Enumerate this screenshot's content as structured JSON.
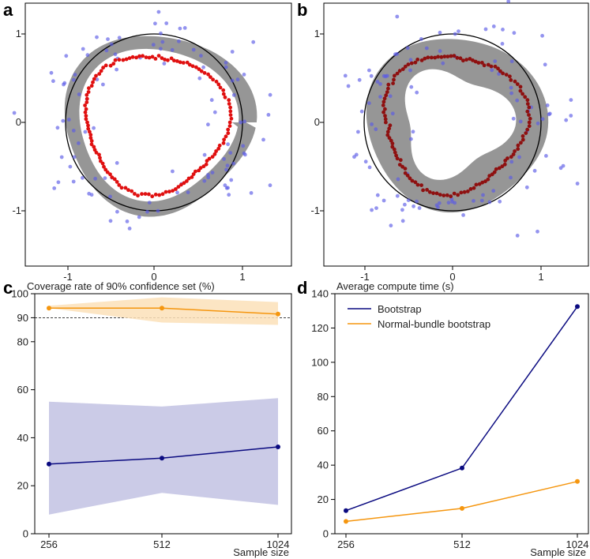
{
  "panels": {
    "a": "a",
    "b": "b",
    "c": "c",
    "d": "d"
  },
  "colors": {
    "bootstrap": "#0a0a80",
    "bootstrap_band": "#c8c8e6",
    "normal_bundle": "#f5960f",
    "normal_bundle_band": "#fbe0b8",
    "sample_points": "#5a5ae6",
    "red_points_a": "#e01010",
    "red_points_b": "#8e1010",
    "band_gray": "#909090"
  },
  "chart_data": [
    {
      "type": "scatter",
      "panel": "a",
      "title": "",
      "xticks": [
        "-1",
        "0",
        "1"
      ],
      "yticks": [
        "1",
        "0",
        "-1"
      ],
      "xlim": [
        -1.45,
        1.55
      ],
      "ylim": [
        -1.5,
        1.3
      ],
      "unit_circle_radius": 1.0,
      "sample_points_count": 110,
      "estimate_points_count": 130,
      "estimate_radius": 0.78,
      "band_description": "gray confidence band around unit circle"
    },
    {
      "type": "scatter",
      "panel": "b",
      "title": "",
      "xticks": [
        "-1",
        "0",
        "1"
      ],
      "yticks": [
        "1",
        "0",
        "-1"
      ],
      "xlim": [
        -1.45,
        1.55
      ],
      "ylim": [
        -1.5,
        1.3
      ],
      "unit_circle_radius": 1.0,
      "sample_points_count": 110,
      "estimate_points_count": 130,
      "estimate_radius": 0.78,
      "band_description": "wide gray confidence band"
    },
    {
      "type": "line",
      "panel": "c",
      "title": "Coverage rate of 90% confidence set (%)",
      "xlabel": "Sample size",
      "categories": [
        "256",
        "512",
        "1024"
      ],
      "ylim": [
        0,
        100
      ],
      "yticks": [
        "0",
        "20",
        "40",
        "60",
        "80",
        "90",
        "100"
      ],
      "reference_line": 90,
      "series": [
        {
          "name": "Bootstrap",
          "values": [
            29,
            31.5,
            36.2
          ],
          "lower": [
            8,
            17,
            12
          ],
          "upper": [
            55,
            53,
            56.5
          ]
        },
        {
          "name": "Normal-bundle bootstrap",
          "values": [
            94,
            94,
            91.5
          ],
          "lower": [
            94,
            88,
            87
          ],
          "upper": [
            95,
            98.5,
            96.5
          ]
        }
      ]
    },
    {
      "type": "line",
      "panel": "d",
      "title": "Average compute time (s)",
      "xlabel": "Sample size",
      "categories": [
        "256",
        "512",
        "1024"
      ],
      "ylim": [
        0,
        140
      ],
      "yticks": [
        "0",
        "20",
        "40",
        "60",
        "80",
        "100",
        "120",
        "140"
      ],
      "legend": [
        "Bootstrap",
        "Normal-bundle bootstrap"
      ],
      "legend_loc": "upper-left",
      "series": [
        {
          "name": "Bootstrap",
          "values": [
            13.5,
            38.3,
            132.5
          ]
        },
        {
          "name": "Normal-bundle bootstrap",
          "values": [
            7.2,
            14.8,
            30.5
          ]
        }
      ]
    }
  ]
}
